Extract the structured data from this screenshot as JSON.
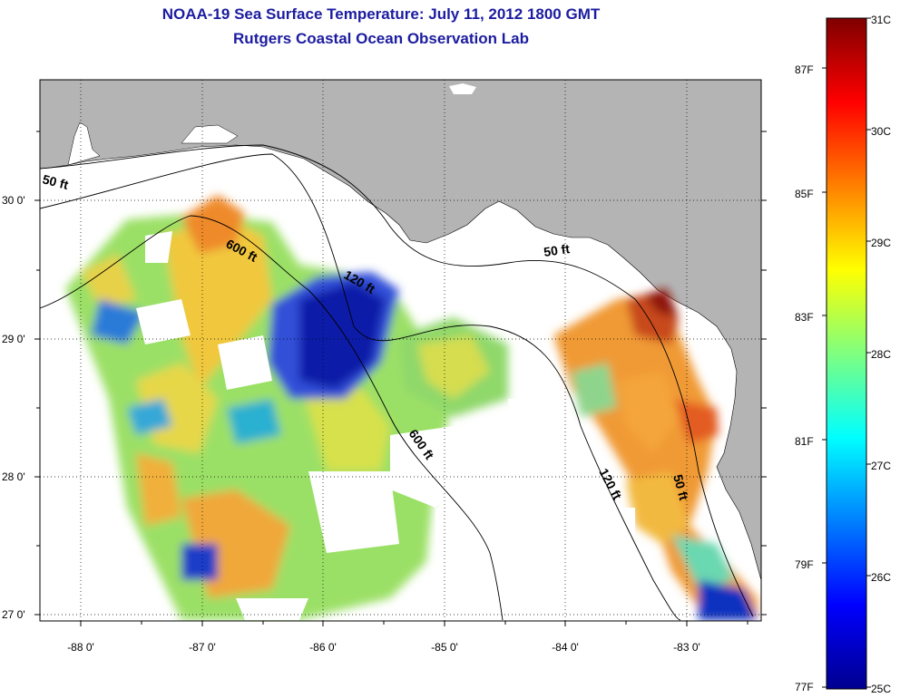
{
  "title": {
    "line1": "NOAA-19 Sea Surface Temperature:  July 11, 2012 1800 GMT",
    "line2": "Rutgers Coastal Ocean Observation Lab"
  },
  "map": {
    "lon_ticks": [
      "-88 0'",
      "-87 0'",
      "-86 0'",
      "-85 0'",
      "-84 0'",
      "-83 0'"
    ],
    "lat_ticks": [
      "30 0'",
      "29 0'",
      "28 0'",
      "27 0'"
    ],
    "contour_labels": [
      "50 ft",
      "600 ft",
      "120 ft",
      "50 ft",
      "600 ft",
      "120 ft",
      "50 ft"
    ],
    "colors": {
      "land": "#b4b4b4",
      "nodata": "#ffffff"
    }
  },
  "colorbar": {
    "celsius_labels": [
      "31C",
      "30C",
      "29C",
      "28C",
      "27C",
      "26C",
      "25C"
    ],
    "fahrenheit_labels": [
      "87F",
      "85F",
      "83F",
      "81F",
      "79F",
      "77F"
    ],
    "range_c": [
      25,
      31
    ],
    "colormap": "jet"
  }
}
